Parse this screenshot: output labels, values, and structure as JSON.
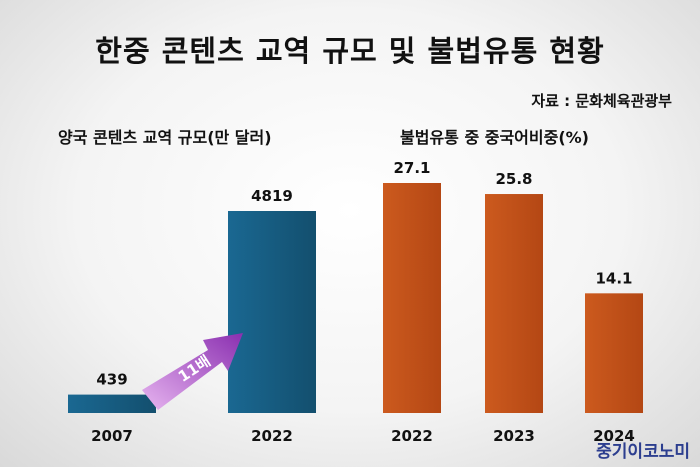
{
  "title": "한중 콘텐츠 교역 규모 및 불법유통 현황",
  "source": "자료 : 문화체육관광부",
  "brand": "중기이코노미",
  "arrow_label": "11배",
  "colors": {
    "trade": "#155c80",
    "piracy": "#c4501a",
    "arrow": "#a040c0"
  },
  "chart_data": [
    {
      "type": "bar",
      "title": "양국 콘텐츠 교역 규모(만 달러)",
      "categories": [
        "2007",
        "2022"
      ],
      "values": [
        439,
        4819
      ],
      "value_labels": [
        "439",
        "4819"
      ],
      "ylim": [
        0,
        4819
      ]
    },
    {
      "type": "bar",
      "title": "불법유통 중 중국어비중(%)",
      "categories": [
        "2022",
        "2023",
        "2024"
      ],
      "values": [
        27.1,
        25.8,
        14.1
      ],
      "value_labels": [
        "27.1",
        "25.8",
        "14.1"
      ],
      "ylim": [
        0,
        27.1
      ]
    }
  ]
}
